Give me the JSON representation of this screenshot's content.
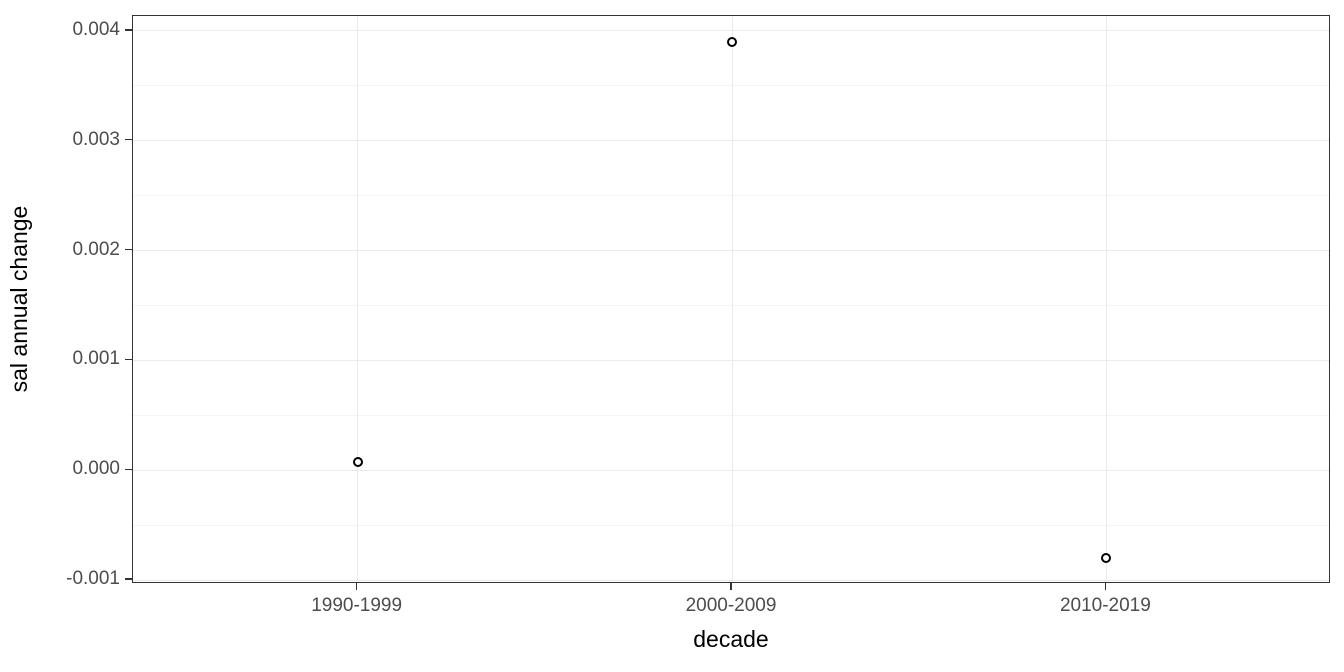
{
  "chart_data": {
    "type": "scatter",
    "title": "",
    "xlabel": "decade",
    "ylabel": "sal annual change",
    "categories": [
      "1990-1999",
      "2000-2009",
      "2010-2019"
    ],
    "series": [
      {
        "name": "sal annual change",
        "values": [
          8e-05,
          0.0039,
          -0.0008
        ]
      }
    ],
    "y_ticks": [
      -0.001,
      0.0,
      0.001,
      0.002,
      0.003,
      0.004
    ],
    "y_tick_labels": [
      "-0.001",
      "0.000",
      "0.001",
      "0.002",
      "0.003",
      "0.004"
    ],
    "ylim": [
      -0.001035,
      0.004135
    ],
    "x_minor_gridlines": false,
    "y_minor_gridlines": true,
    "grid": "on",
    "legend": "none",
    "marker": "open-circle",
    "colors": {
      "point_stroke": "#000000",
      "point_fill": "#ffffff",
      "grid_major": "#ebebeb",
      "grid_minor": "#f5f5f5",
      "panel_border": "#333333",
      "tick_mark": "#333333",
      "tick_label": "#4d4d4d",
      "axis_title": "#000000",
      "panel_background": "#ffffff",
      "figure_background": "#ffffff"
    }
  }
}
